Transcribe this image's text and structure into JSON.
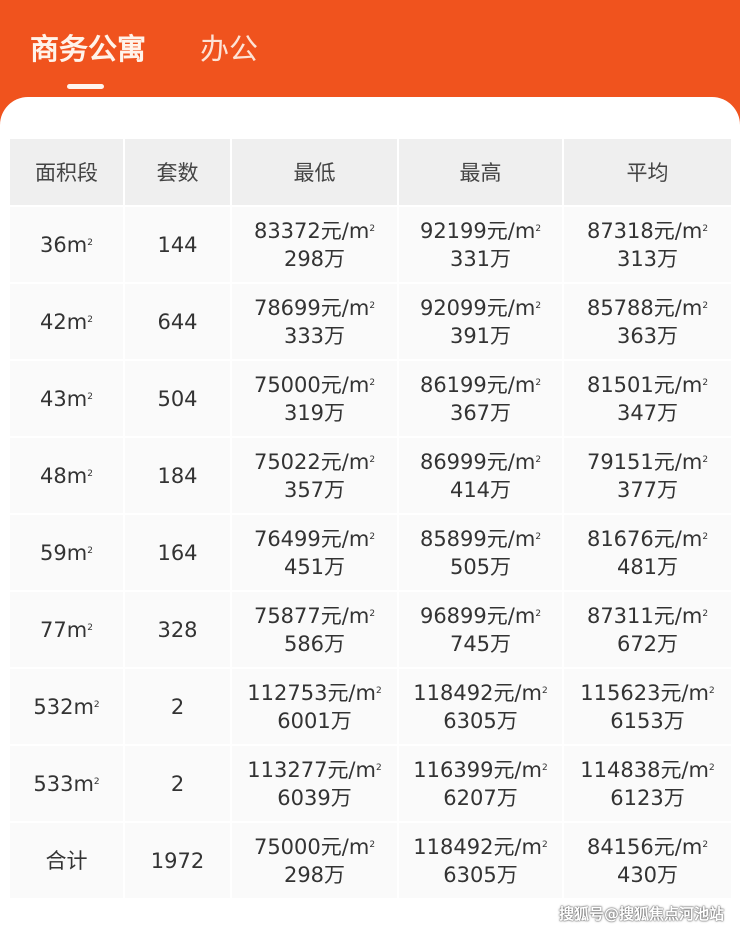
{
  "tabs": [
    {
      "label": "商务公寓",
      "active": true
    },
    {
      "label": "办公",
      "active": false
    }
  ],
  "colors": {
    "header": "#f0531e",
    "card": "#ffffff",
    "header_cell": "#efefef"
  },
  "table": {
    "headers": [
      "面积段",
      "套数",
      "最低",
      "最高",
      "平均"
    ],
    "unit_price": "元/m",
    "unit_total": "万",
    "rows": [
      {
        "area": "36m",
        "count": "144",
        "min_p": "83372",
        "min_t": "298",
        "max_p": "92199",
        "max_t": "331",
        "avg_p": "87318",
        "avg_t": "313"
      },
      {
        "area": "42m",
        "count": "644",
        "min_p": "78699",
        "min_t": "333",
        "max_p": "92099",
        "max_t": "391",
        "avg_p": "85788",
        "avg_t": "363"
      },
      {
        "area": "43m",
        "count": "504",
        "min_p": "75000",
        "min_t": "319",
        "max_p": "86199",
        "max_t": "367",
        "avg_p": "81501",
        "avg_t": "347"
      },
      {
        "area": "48m",
        "count": "184",
        "min_p": "75022",
        "min_t": "357",
        "max_p": "86999",
        "max_t": "414",
        "avg_p": "79151",
        "avg_t": "377"
      },
      {
        "area": "59m",
        "count": "164",
        "min_p": "76499",
        "min_t": "451",
        "max_p": "85899",
        "max_t": "505",
        "avg_p": "81676",
        "avg_t": "481"
      },
      {
        "area": "77m",
        "count": "328",
        "min_p": "75877",
        "min_t": "586",
        "max_p": "96899",
        "max_t": "745",
        "avg_p": "87311",
        "avg_t": "672"
      },
      {
        "area": "532m",
        "count": "2",
        "min_p": "112753",
        "min_t": "6001",
        "max_p": "118492",
        "max_t": "6305",
        "avg_p": "115623",
        "avg_t": "6153"
      },
      {
        "area": "533m",
        "count": "2",
        "min_p": "113277",
        "min_t": "6039",
        "max_p": "116399",
        "max_t": "6207",
        "avg_p": "114838",
        "avg_t": "6123"
      },
      {
        "area": "合计",
        "count": "1972",
        "min_p": "75000",
        "min_t": "298",
        "max_p": "118492",
        "max_t": "6305",
        "avg_p": "84156",
        "avg_t": "430"
      }
    ]
  },
  "watermark": "搜狐号@搜狐焦点河池站"
}
